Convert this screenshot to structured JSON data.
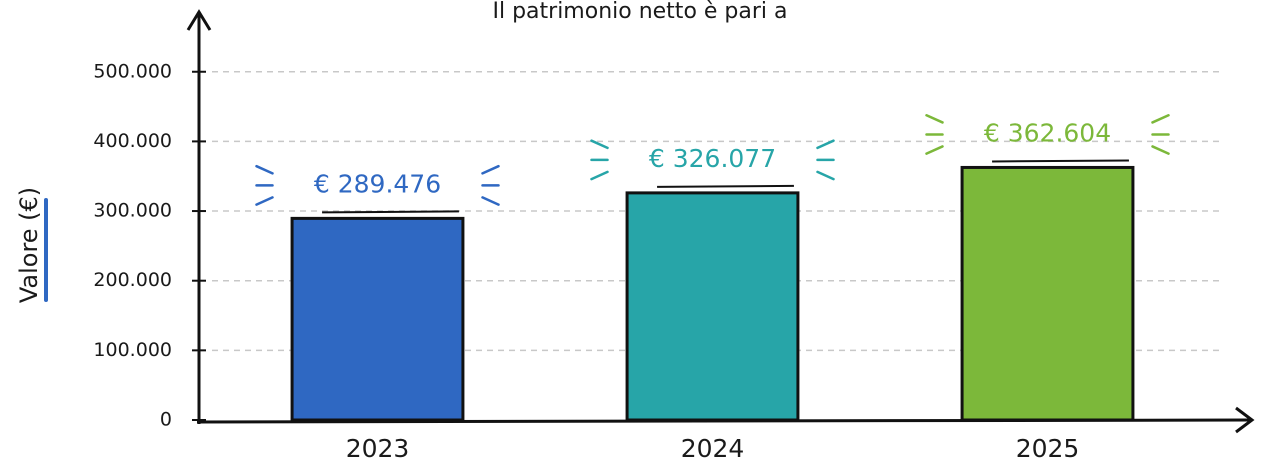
{
  "chart_data": {
    "type": "bar",
    "title": "Il patrimonio netto è pari a",
    "y_label": "Valore (€)",
    "categories": [
      "2023",
      "2024",
      "2025"
    ],
    "values": [
      289476,
      326077,
      362604
    ],
    "value_labels": [
      "€ 289.476",
      "€ 326.077",
      "€ 362.604"
    ],
    "colors": [
      "#2f68c2",
      "#27a5a8",
      "#7cb83a"
    ],
    "ylim": [
      0,
      570000
    ],
    "yticks": [
      0,
      {
        "value": 100000,
        "label": "100.000"
      },
      {
        "value": 200000,
        "label": "200.000"
      },
      {
        "value": 300000,
        "label": "300.000"
      },
      {
        "value": 400000,
        "label": "400.000"
      },
      {
        "value": 500000,
        "label": "500.000"
      }
    ],
    "grid": true
  }
}
